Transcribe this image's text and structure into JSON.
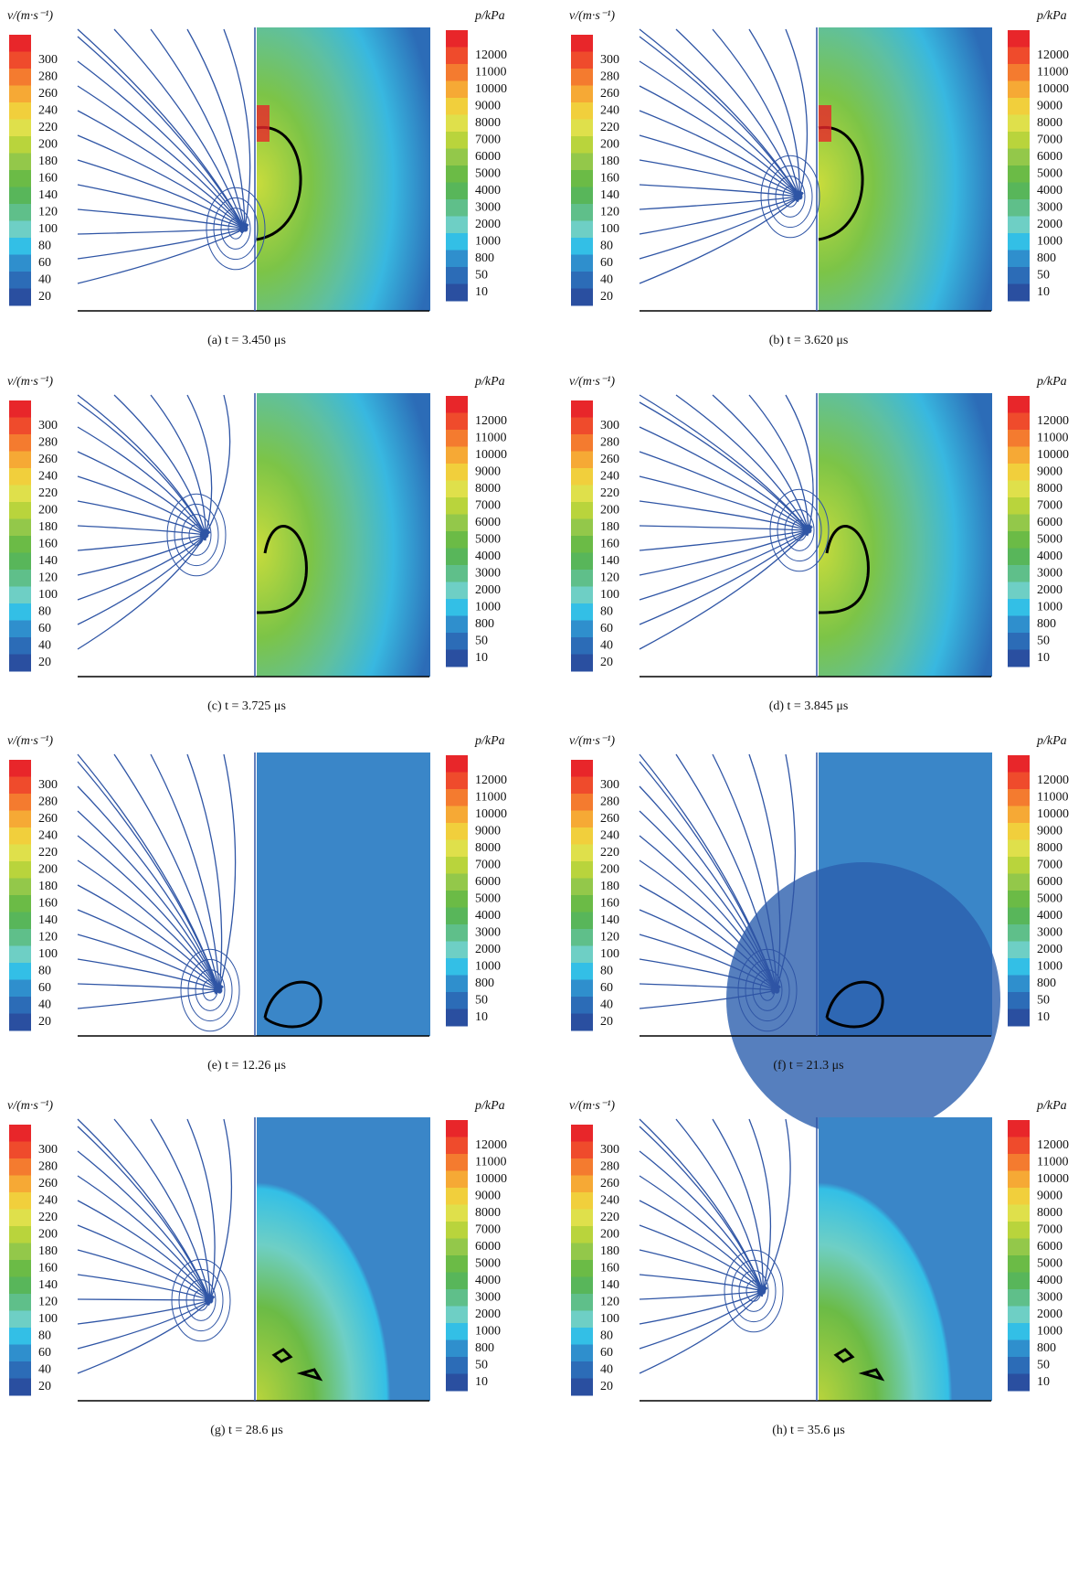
{
  "velocity_scale": {
    "label": "v/(m·s⁻¹)",
    "ticks": [
      300,
      280,
      260,
      240,
      220,
      200,
      180,
      160,
      140,
      120,
      100,
      80,
      60,
      40,
      20
    ],
    "colors": [
      "#e8262a",
      "#ef4b2c",
      "#f47b2f",
      "#f6a935",
      "#f1cf3c",
      "#dfe04b",
      "#b9d43c",
      "#93c84a",
      "#6bbb46",
      "#58b65a",
      "#5fbf8a",
      "#6ecfc5",
      "#33bfe6",
      "#2f8fcd",
      "#2c6cb7",
      "#2a4fa0"
    ]
  },
  "pressure_scale": {
    "label": "p/kPa",
    "ticks": [
      12000,
      11000,
      10000,
      9000,
      8000,
      7000,
      6000,
      5000,
      4000,
      3000,
      2000,
      1000,
      800,
      50,
      10
    ],
    "colors": [
      "#e8262a",
      "#ef4b2c",
      "#f47b2f",
      "#f6a935",
      "#f1cf3c",
      "#dfe04b",
      "#b9d43c",
      "#93c84a",
      "#6bbb46",
      "#58b65a",
      "#5fbf8a",
      "#6ecfc5",
      "#33bfe6",
      "#2f8fcd",
      "#2c6cb7",
      "#2a4fa0"
    ]
  },
  "panels": [
    {
      "caption": "(a) t = 3.450 μs"
    },
    {
      "caption": "(b) t = 3.620 μs"
    },
    {
      "caption": "(c) t = 3.725 μs"
    },
    {
      "caption": "(d) t = 3.845 μs"
    },
    {
      "caption": "(e) t = 12.26 μs"
    },
    {
      "caption": "(f) t = 21.3 μs"
    },
    {
      "caption": "(g) t = 28.6 μs"
    },
    {
      "caption": "(h) t = 35.6 μs"
    }
  ]
}
